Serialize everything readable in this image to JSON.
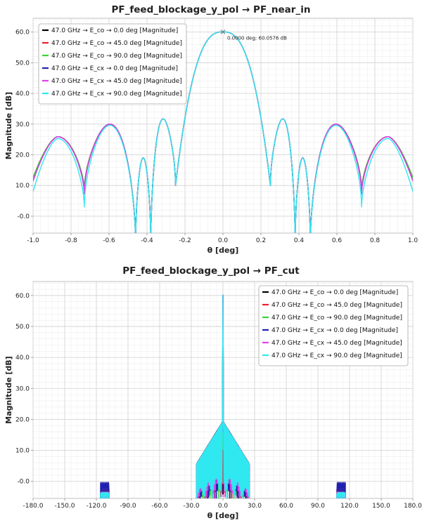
{
  "chart_data": [
    {
      "type": "line",
      "title": "PF_feed_blockage_y_pol → PF_near_in",
      "xlabel": "θ [deg]",
      "ylabel": "Magnitude [dB]",
      "xlim": [
        -1.0,
        1.0
      ],
      "ylim": [
        -5.5,
        64.5
      ],
      "xticks": [
        "-1.0",
        "-0.8",
        "-0.6",
        "-0.4",
        "-0.2",
        "0.0",
        "0.2",
        "0.4",
        "0.6",
        "0.8",
        "1.0"
      ],
      "yticks": [
        "-0.0",
        "10.0",
        "20.0",
        "30.0",
        "40.0",
        "50.0",
        "60.0"
      ],
      "grid": true,
      "legend_position": "top-left",
      "annotation": {
        "text": "0.0000 deg; 60.0576 dB",
        "x": 0.0,
        "y": 60.0576
      },
      "series": [
        {
          "name": "47.0 GHz → E_co → 0.0 deg [Magnitude]",
          "color": "#000000"
        },
        {
          "name": "47.0 GHz → E_co → 45.0 deg [Magnitude]",
          "color": "#e8202a"
        },
        {
          "name": "47.0 GHz → E_co → 90.0 deg [Magnitude]",
          "color": "#38d438"
        },
        {
          "name": "47.0 GHz → E_cx → 0.0 deg [Magnitude]",
          "color": "#2020b0"
        },
        {
          "name": "47.0 GHz → E_cx → 45.0 deg [Magnitude]",
          "color": "#e040e8"
        },
        {
          "name": "47.0 GHz → E_cx → 90.0 deg [Magnitude]",
          "color": "#30e8f0"
        }
      ],
      "envelope_points": {
        "x": [
          -1.0,
          -0.87,
          -0.73,
          -0.58,
          -0.47,
          -0.46,
          -0.4,
          -0.38,
          -0.3,
          -0.25,
          0.0,
          0.25,
          0.3,
          0.38,
          0.4,
          0.46,
          0.47,
          0.58,
          0.73,
          0.87,
          1.0
        ],
        "y": [
          12.0,
          25.9,
          7.5,
          29.9,
          -6.0,
          -6.0,
          19.0,
          -6.0,
          31.7,
          10.0,
          60.06,
          10.0,
          31.7,
          -6.0,
          19.0,
          -6.0,
          -6.0,
          29.9,
          7.5,
          25.9,
          12.0
        ]
      }
    },
    {
      "type": "line",
      "title": "PF_feed_blockage_y_pol → PF_cut",
      "xlabel": "θ [deg]",
      "ylabel": "Magnitude [dB]",
      "xlim": [
        -180.0,
        180.0
      ],
      "ylim": [
        -5.5,
        64.5
      ],
      "xticks": [
        "-180.0",
        "-150.0",
        "-120.0",
        "-90.0",
        "-60.0",
        "-30.0",
        "0.0",
        "30.0",
        "60.0",
        "90.0",
        "120.0",
        "150.0",
        "180.0"
      ],
      "yticks": [
        "-0.0",
        "10.0",
        "20.0",
        "30.0",
        "40.0",
        "50.0",
        "60.0"
      ],
      "grid": true,
      "legend_position": "top-right",
      "series": [
        {
          "name": "47.0 GHz → E_co → 0.0 deg [Magnitude]",
          "color": "#000000"
        },
        {
          "name": "47.0 GHz → E_co → 45.0 deg [Magnitude]",
          "color": "#e8202a"
        },
        {
          "name": "47.0 GHz → E_co → 90.0 deg [Magnitude]",
          "color": "#38d438"
        },
        {
          "name": "47.0 GHz → E_cx → 0.0 deg [Magnitude]",
          "color": "#2020b0"
        },
        {
          "name": "47.0 GHz → E_cx → 45.0 deg [Magnitude]",
          "color": "#e040e8"
        },
        {
          "name": "47.0 GHz → E_cx → 90.0 deg [Magnitude]",
          "color": "#30e8f0"
        }
      ],
      "main_lobe": {
        "x": 0.0,
        "y": 60.06
      },
      "side_lobes": [
        {
          "x_range": [
            -25.0,
            25.0
          ],
          "y_max": 19.5
        },
        {
          "x_range": [
            -116.0,
            -108.0
          ],
          "y_max": -0.3
        },
        {
          "x_range": [
            108.0,
            116.0
          ],
          "y_max": -0.3
        }
      ]
    }
  ]
}
